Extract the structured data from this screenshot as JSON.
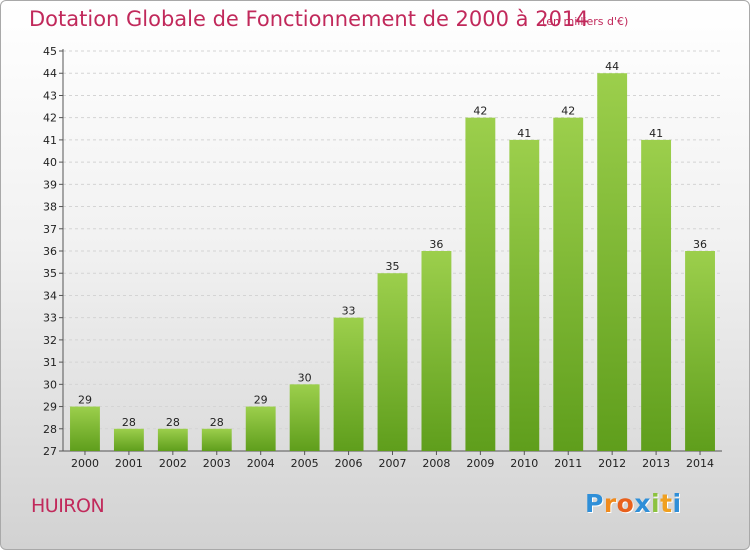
{
  "title": "Dotation Globale de Fonctionnement de 2000 à 2014",
  "unit_note": "(en milliers d'€)",
  "commune": "HUIRON",
  "brand": {
    "letters": [
      "P",
      "r",
      "o",
      "x",
      "i",
      "t",
      "i"
    ],
    "colors": [
      "#2f8fd8",
      "#f08a1c",
      "#e8601c",
      "#2f8fd8",
      "#8cc23f",
      "#f0a020",
      "#2f8fd8"
    ]
  },
  "colors": {
    "title": "#c1295b",
    "bar_top": "#9ccf4c",
    "bar_bottom": "#5f9e1c"
  },
  "chart_data": {
    "type": "bar",
    "categories": [
      "2000",
      "2001",
      "2002",
      "2003",
      "2004",
      "2005",
      "2006",
      "2007",
      "2008",
      "2009",
      "2010",
      "2011",
      "2012",
      "2013",
      "2014"
    ],
    "values": [
      29,
      28,
      28,
      28,
      29,
      30,
      33,
      35,
      36,
      42,
      41,
      42,
      44,
      41,
      36
    ],
    "ylim": [
      27,
      45
    ],
    "yticks": [
      27,
      28,
      29,
      30,
      31,
      32,
      33,
      34,
      35,
      36,
      37,
      38,
      39,
      40,
      41,
      42,
      43,
      44,
      45
    ],
    "grid": true,
    "data_labels": true
  }
}
